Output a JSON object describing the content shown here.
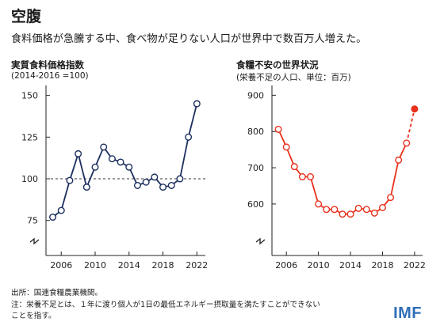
{
  "header": {
    "title": "空腹",
    "subtitle": "食料価格が急騰する中、食べ物が足りない人口が世界中で数百万人増えた。"
  },
  "colors": {
    "left_series": "#1c2f5e",
    "right_series": "#e8301c",
    "reference_line": "#333333"
  },
  "chart_data": [
    {
      "type": "line",
      "title": "実質食料価格指数",
      "subtitle": "(2014-2016 =100)",
      "x": [
        2005,
        2006,
        2007,
        2008,
        2009,
        2010,
        2011,
        2012,
        2013,
        2014,
        2015,
        2016,
        2017,
        2018,
        2019,
        2020,
        2021,
        2022
      ],
      "series": [
        {
          "values": [
            77,
            81,
            99,
            115,
            95,
            107,
            119,
            112,
            110,
            107,
            96,
            98,
            101,
            95,
            96,
            100,
            125,
            145
          ]
        }
      ],
      "reference_line": 100,
      "xticks": [
        2006,
        2010,
        2014,
        2018,
        2022
      ],
      "yticks": [
        75,
        100,
        125,
        150
      ],
      "ylim": [
        54,
        156
      ],
      "xlim": [
        2004.2,
        2023.0
      ],
      "axis_break": true,
      "grid": false
    },
    {
      "type": "line",
      "title": "食糧不安の世界状況",
      "subtitle": "(栄養不足の人口、単位：百万)",
      "x": [
        2005,
        2006,
        2007,
        2008,
        2009,
        2010,
        2011,
        2012,
        2013,
        2014,
        2015,
        2016,
        2017,
        2018,
        2019,
        2020,
        2021,
        2022
      ],
      "series": [
        {
          "values": [
            806,
            757,
            703,
            675,
            675,
            600,
            585,
            585,
            572,
            572,
            588,
            585,
            575,
            590,
            618,
            721,
            768,
            862
          ],
          "projected_from_index": 16,
          "marker_hollow": true
        }
      ],
      "xticks": [
        2006,
        2010,
        2014,
        2018,
        2022
      ],
      "yticks": [
        600,
        700,
        800,
        900
      ],
      "ylim": [
        458,
        927
      ],
      "xlim": [
        2004.2,
        2023.0
      ],
      "axis_break": true,
      "grid": false
    }
  ],
  "footer": {
    "source": "出所：国連食糧農業機関。",
    "note_line1": "注：栄養不足とは、１年に渡り個人が1日の最低エネルギー摂取量を満たすことができない",
    "note_line2": "ことを指す。",
    "logo": "IMF"
  }
}
